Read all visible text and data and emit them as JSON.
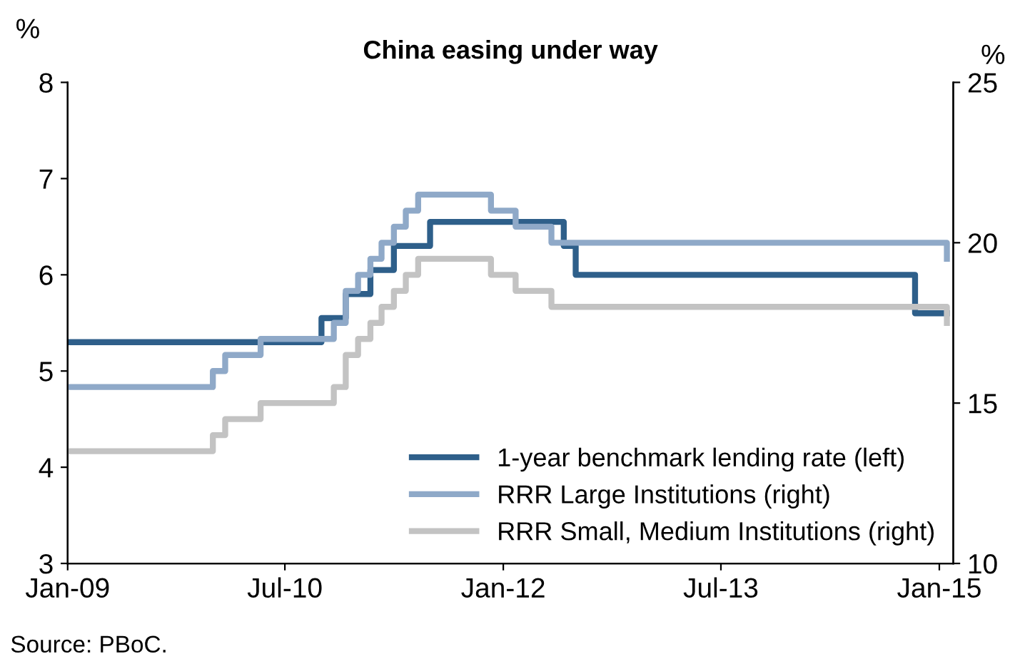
{
  "chart_data": {
    "type": "step",
    "title": "China easing under way",
    "ylabel": "%",
    "y2label": "%",
    "xlim": [
      "2009-01-01",
      "2015-02-05"
    ],
    "xticks": [
      {
        "value": "2009-01-01",
        "label": "Jan-09"
      },
      {
        "value": "2010-07-01",
        "label": "Jul-10"
      },
      {
        "value": "2012-01-01",
        "label": "Jan-12"
      },
      {
        "value": "2013-07-01",
        "label": "Jul-13"
      },
      {
        "value": "2015-01-01",
        "label": "Jan-15"
      }
    ],
    "ylim": [
      3,
      8
    ],
    "yticks": [
      3,
      4,
      5,
      6,
      7,
      8
    ],
    "y2lim": [
      10,
      25
    ],
    "y2ticks": [
      10,
      15,
      20,
      25
    ],
    "grid": false,
    "legend": "bottom right",
    "line_style": "solid",
    "marker": "none",
    "series": [
      {
        "name": "1-year benchmark lending rate (left)",
        "color": "#2e5f8a",
        "x": [
          "2009-01-01",
          "2010-10-01",
          "2010-12-01",
          "2011-02-01",
          "2011-04-01",
          "2011-07-01",
          "2012-06-01",
          "2012-07-01",
          "2014-11-01",
          "2015-01-20"
        ],
        "values": [
          5.3,
          5.55,
          5.8,
          6.05,
          6.3,
          6.55,
          6.3,
          6.0,
          5.6,
          5.6
        ]
      },
      {
        "name": "RRR Large Institutions (right)",
        "color": "#8fa9c8",
        "axis": "y2",
        "x": [
          "2009-01-01",
          "2010-01-01",
          "2010-02-01",
          "2010-05-01",
          "2010-11-01",
          "2010-12-01",
          "2011-01-01",
          "2011-02-01",
          "2011-03-01",
          "2011-04-01",
          "2011-05-01",
          "2011-06-01",
          "2011-12-01",
          "2012-02-01",
          "2012-05-01",
          "2015-01-20"
        ],
        "values": [
          15.5,
          16,
          16.5,
          17,
          17.5,
          18.5,
          19,
          19.5,
          20,
          20.5,
          21,
          21.5,
          21,
          20.5,
          20,
          19.5
        ]
      },
      {
        "name": "RRR Small, Medium Institutions (right)",
        "color": "#c3c3c3",
        "axis": "y2",
        "x": [
          "2009-01-01",
          "2010-01-01",
          "2010-02-01",
          "2010-05-01",
          "2010-11-01",
          "2010-12-01",
          "2011-01-01",
          "2011-02-01",
          "2011-03-01",
          "2011-04-01",
          "2011-05-01",
          "2011-06-01",
          "2011-12-01",
          "2012-02-01",
          "2012-05-01",
          "2015-01-20"
        ],
        "values": [
          13.5,
          14,
          14.5,
          15,
          15.5,
          16.5,
          17,
          17.5,
          18,
          18.5,
          19,
          19.5,
          19,
          18.5,
          18,
          17.5
        ]
      }
    ],
    "annotations": [
      "Source: PBoC."
    ]
  }
}
